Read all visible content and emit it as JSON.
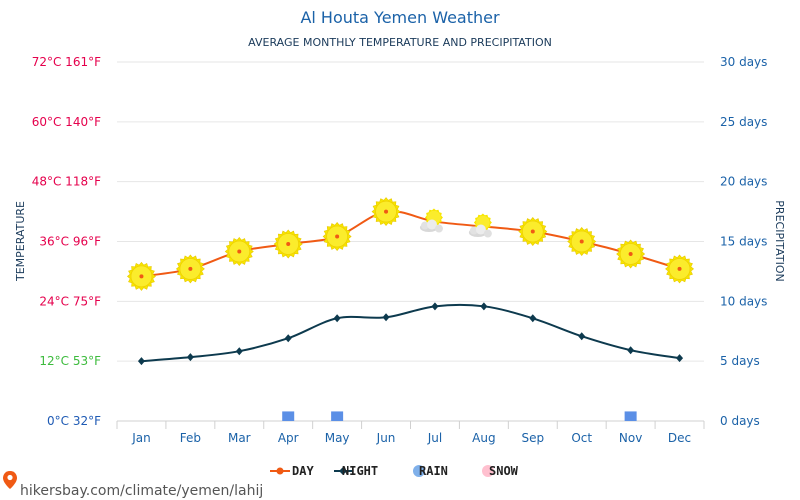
{
  "chart_data": {
    "type": "line",
    "title": "Al Houta Yemen Weather",
    "subtitle": "AVERAGE MONTHLY TEMPERATURE AND PRECIPITATION",
    "ylabel": "TEMPERATURE",
    "y2label": "PRECIPITATION",
    "categories": [
      "Jan",
      "Feb",
      "Mar",
      "Apr",
      "May",
      "Jun",
      "Jul",
      "Aug",
      "Sep",
      "Oct",
      "Nov",
      "Dec"
    ],
    "y_ticks": [
      {
        "c": 0,
        "label": "0°C 32°F",
        "color": "#1e5ab4"
      },
      {
        "c": 12,
        "label": "12°C 53°F",
        "color": "#3dbb3d"
      },
      {
        "c": 24,
        "label": "24°C 75°F",
        "color": "#e5004c"
      },
      {
        "c": 36,
        "label": "36°C 96°F",
        "color": "#e5004c"
      },
      {
        "c": 48,
        "label": "48°C 118°F",
        "color": "#e5004c"
      },
      {
        "c": 60,
        "label": "60°C 140°F",
        "color": "#e5004c"
      },
      {
        "c": 72,
        "label": "72°C 161°F",
        "color": "#e5004c"
      }
    ],
    "y2_ticks": [
      {
        "v": 0,
        "label": "0 days"
      },
      {
        "v": 5,
        "label": "5 days"
      },
      {
        "v": 10,
        "label": "10 days"
      },
      {
        "v": 15,
        "label": "15 days"
      },
      {
        "v": 20,
        "label": "20 days"
      },
      {
        "v": 25,
        "label": "25 days"
      },
      {
        "v": 30,
        "label": "30 days"
      }
    ],
    "ylim": [
      0,
      72
    ],
    "y2lim": [
      0,
      30
    ],
    "grid": true,
    "legend_position": "bottom",
    "series": [
      {
        "name": "DAY",
        "unit": "°C",
        "color": "#f05a14",
        "values": [
          29,
          30.5,
          34,
          35.5,
          37,
          42,
          40,
          39,
          38,
          36,
          33.5,
          30.5
        ],
        "icons": [
          "sun",
          "sun",
          "sun",
          "sun",
          "sun",
          "sun",
          "sun-cloud",
          "sun-cloud",
          "sun",
          "sun",
          "sun",
          "sun"
        ]
      },
      {
        "name": "NIGHT",
        "unit": "°C",
        "color": "#0d3a4e",
        "values": [
          12,
          12.8,
          14,
          16.6,
          20.6,
          20.8,
          23,
          23,
          20.6,
          17,
          14.2,
          12.6
        ]
      },
      {
        "name": "RAIN",
        "unit": "days",
        "color": "#5b8fe6",
        "values": [
          0,
          0,
          0,
          0.8,
          0.8,
          0,
          0,
          0,
          0,
          0,
          0.8,
          0
        ]
      },
      {
        "name": "SNOW",
        "unit": "days",
        "color": "#ffb6c8",
        "values": [
          0,
          0,
          0,
          0,
          0,
          0,
          0,
          0,
          0,
          0,
          0,
          0
        ]
      }
    ]
  },
  "legend": {
    "items": [
      {
        "label": "DAY",
        "color": "#f05a14",
        "marker": "line-dot"
      },
      {
        "label": "NIGHT",
        "color": "#0d3a4e",
        "marker": "line-diamond"
      },
      {
        "label": "RAIN",
        "color": "#7fb0ea",
        "marker": "dot"
      },
      {
        "label": "SNOW",
        "color": "#ffc0cf",
        "marker": "dot"
      }
    ]
  },
  "source": {
    "text": "hikersbay.com/climate/yemen/lahij",
    "icon": "map-pin-icon",
    "icon_color": "#f05a14"
  },
  "colors": {
    "title": "#1b62a8",
    "axis_text": "#1b62a8",
    "grid": "#e6e6e6"
  }
}
